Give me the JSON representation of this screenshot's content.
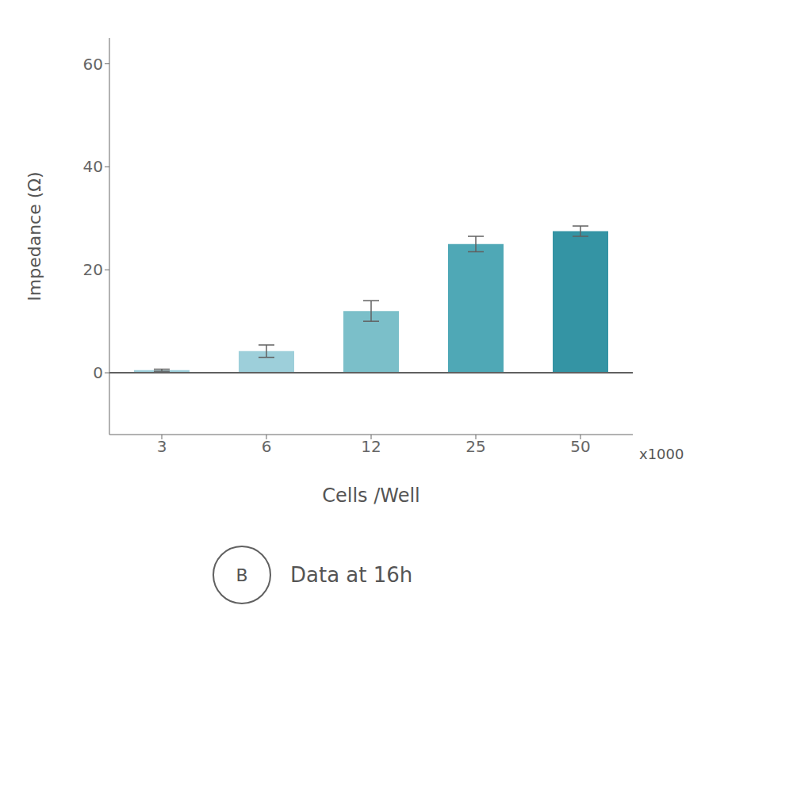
{
  "chart_data": {
    "type": "bar",
    "title": "B",
    "subtitle": "Data at 16h",
    "annotations": [
      "x1000"
    ],
    "xlabel": "Cells /Well",
    "ylabel": "Impedance (Ω)",
    "categories": [
      "3",
      "6",
      "12",
      "25",
      "50"
    ],
    "values": [
      0.5,
      4.2,
      12.0,
      25.0,
      27.5
    ],
    "errors": [
      0.2,
      1.2,
      2.0,
      1.5,
      1.0
    ],
    "colors": [
      "#9dcfda",
      "#9dcfda",
      "#7bbfc9",
      "#4fa8b6",
      "#3494a4"
    ],
    "ylim": [
      -12,
      65
    ],
    "yticks": [
      0,
      20,
      40,
      60
    ],
    "grid": false
  }
}
